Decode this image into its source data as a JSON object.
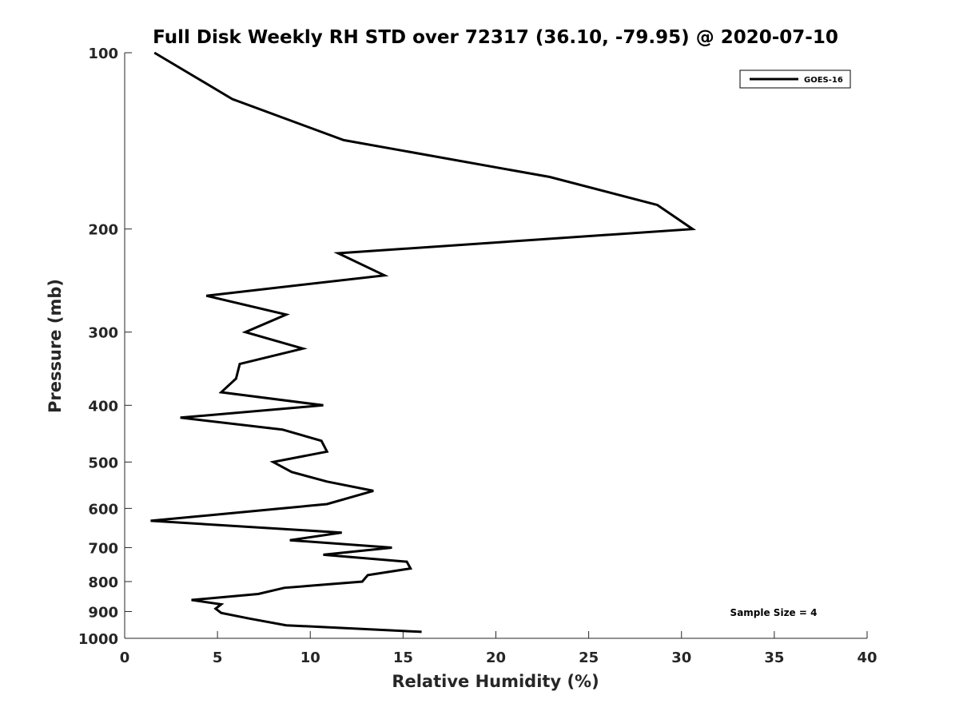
{
  "chart_data": {
    "type": "line",
    "title": "Full Disk Weekly RH STD over 72317 (36.10, -79.95) @ 2020-07-10",
    "xlabel": "Relative Humidity (%)",
    "ylabel": "Pressure (mb)",
    "xlim": [
      0,
      40
    ],
    "ylim": [
      100,
      1000
    ],
    "y_scale": "log",
    "y_inverted": true,
    "x_ticks": [
      0,
      5,
      10,
      15,
      20,
      25,
      30,
      35,
      40
    ],
    "y_ticks": [
      100,
      200,
      300,
      400,
      500,
      600,
      700,
      800,
      900,
      1000
    ],
    "grid": false,
    "legend_position": "top-right",
    "annotation": "Sample Size = 4",
    "series": [
      {
        "name": "GOES-16",
        "color": "#000000",
        "points": [
          [
            1.6,
            100
          ],
          [
            5.8,
            120
          ],
          [
            11.8,
            141
          ],
          [
            22.9,
            163
          ],
          [
            28.7,
            182
          ],
          [
            30.6,
            200
          ],
          [
            11.5,
            220
          ],
          [
            14.0,
            240
          ],
          [
            4.4,
            260
          ],
          [
            8.7,
            280
          ],
          [
            6.5,
            300
          ],
          [
            9.6,
            320
          ],
          [
            6.2,
            340
          ],
          [
            6.0,
            360
          ],
          [
            5.2,
            380
          ],
          [
            10.7,
            400
          ],
          [
            3.0,
            420
          ],
          [
            8.5,
            440
          ],
          [
            10.6,
            460
          ],
          [
            10.9,
            480
          ],
          [
            8.0,
            500
          ],
          [
            9.0,
            520
          ],
          [
            10.9,
            540
          ],
          [
            13.4,
            560
          ],
          [
            10.9,
            590
          ],
          [
            1.4,
            630
          ],
          [
            11.7,
            660
          ],
          [
            8.9,
            680
          ],
          [
            14.4,
            700
          ],
          [
            10.7,
            720
          ],
          [
            15.2,
            740
          ],
          [
            15.4,
            760
          ],
          [
            13.1,
            780
          ],
          [
            12.8,
            800
          ],
          [
            8.6,
            820
          ],
          [
            7.2,
            840
          ],
          [
            3.6,
            860
          ],
          [
            5.2,
            875
          ],
          [
            4.9,
            890
          ],
          [
            5.2,
            905
          ],
          [
            6.7,
            925
          ],
          [
            8.7,
            950
          ],
          [
            16.0,
            975
          ]
        ]
      }
    ]
  }
}
